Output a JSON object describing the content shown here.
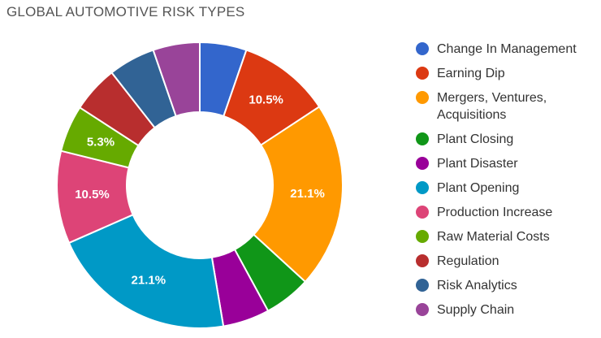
{
  "chart_data": {
    "type": "pie",
    "title": "GLOBAL AUTOMOTIVE RISK TYPES",
    "donut": true,
    "categories": [
      "Change In Management",
      "Earning Dip",
      "Mergers, Ventures, Acquisitions",
      "Plant Closing",
      "Plant Disaster",
      "Plant Opening",
      "Production Increase",
      "Raw Material Costs",
      "Regulation",
      "Risk Analytics",
      "Supply Chain"
    ],
    "values": [
      5.3,
      10.5,
      21.1,
      5.3,
      5.3,
      21.1,
      10.5,
      5.3,
      5.3,
      5.3,
      5.3
    ],
    "data_labels": [
      "",
      "10.5%",
      "21.1%",
      "",
      "",
      "21.1%",
      "10.5%",
      "5.3%",
      "",
      "",
      ""
    ],
    "colors": [
      "#3366cc",
      "#dc3912",
      "#ff9900",
      "#109618",
      "#990099",
      "#0099c6",
      "#dd4477",
      "#66aa00",
      "#b82e2e",
      "#316395",
      "#994499"
    ],
    "legend_position": "right"
  }
}
